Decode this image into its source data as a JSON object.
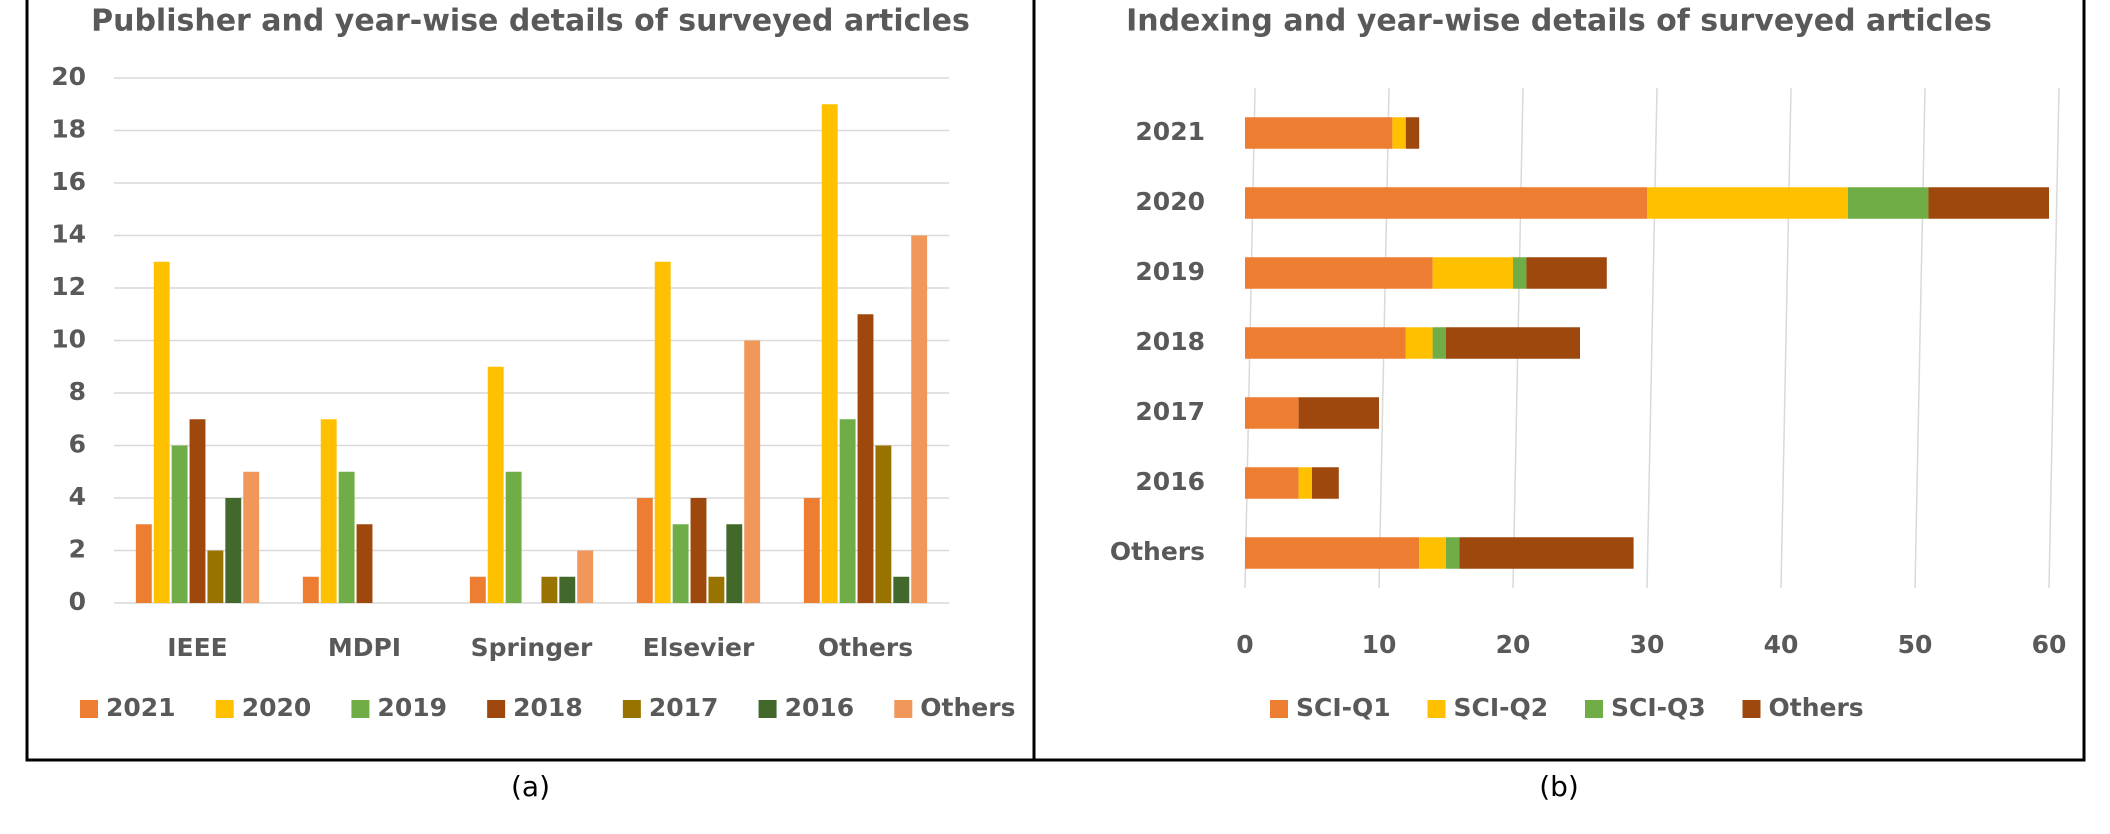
{
  "chart_data": [
    {
      "type": "bar",
      "title": "Publisher and year-wise details of surveyed articles",
      "caption": "(a)",
      "categories": [
        "IEEE",
        "MDPI",
        "Springer",
        "Elsevier",
        "Others"
      ],
      "series": [
        {
          "name": "2021",
          "color": "#ED7D31",
          "values": [
            3,
            1,
            1,
            4,
            4
          ]
        },
        {
          "name": "2020",
          "color": "#FFC000",
          "values": [
            13,
            7,
            9,
            13,
            19
          ]
        },
        {
          "name": "2019",
          "color": "#70AD47",
          "values": [
            6,
            5,
            5,
            3,
            7
          ]
        },
        {
          "name": "2018",
          "color": "#9E480E",
          "values": [
            7,
            3,
            null,
            4,
            11
          ]
        },
        {
          "name": "2017",
          "color": "#997300",
          "values": [
            2,
            null,
            1,
            1,
            6
          ]
        },
        {
          "name": "2016",
          "color": "#43682B",
          "values": [
            4,
            null,
            1,
            3,
            1
          ]
        },
        {
          "name": "Others",
          "color": "#F1975A",
          "values": [
            5,
            null,
            2,
            10,
            14
          ]
        }
      ],
      "ylim": [
        0,
        20
      ],
      "yticks": [
        0,
        2,
        4,
        6,
        8,
        10,
        12,
        14,
        16,
        18,
        20
      ],
      "grid": true
    },
    {
      "type": "stacked-barh",
      "title": "Indexing and year-wise details of surveyed articles",
      "caption": "(b)",
      "categories": [
        "2021",
        "2020",
        "2019",
        "2018",
        "2017",
        "2016",
        "Others"
      ],
      "series": [
        {
          "name": "SCI-Q1",
          "color": "#ED7D31",
          "values": [
            11,
            30,
            14,
            12,
            4,
            4,
            13
          ]
        },
        {
          "name": "SCI-Q2",
          "color": "#FFC000",
          "values": [
            1,
            15,
            6,
            2,
            0,
            1,
            2
          ]
        },
        {
          "name": "SCI-Q3",
          "color": "#70AD47",
          "values": [
            0,
            6,
            1,
            1,
            0,
            0,
            1
          ]
        },
        {
          "name": "Others",
          "color": "#9E480E",
          "values": [
            1,
            9,
            6,
            10,
            6,
            2,
            13
          ]
        }
      ],
      "xlim": [
        0,
        60
      ],
      "xticks": [
        0,
        10,
        20,
        30,
        40,
        50,
        60
      ],
      "grid": true
    }
  ]
}
